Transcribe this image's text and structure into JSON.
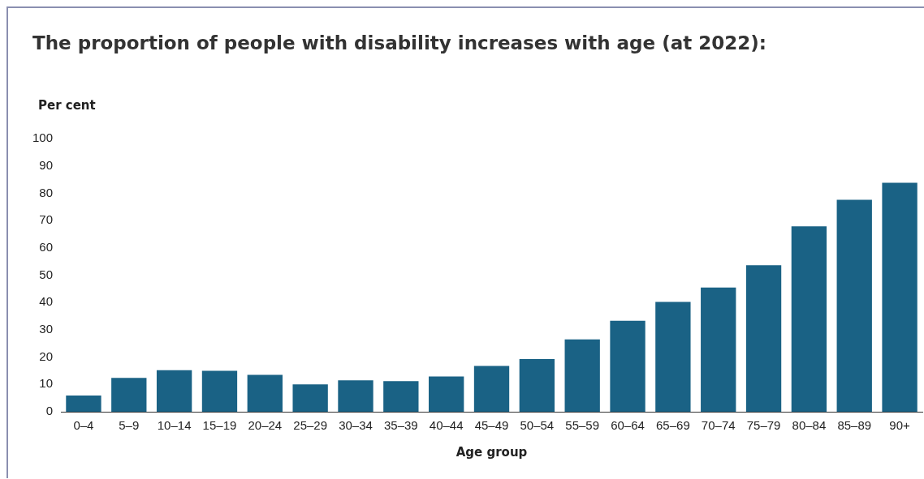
{
  "chart_data": {
    "type": "bar",
    "title": "The proportion of people with disability increases with age (at 2022):",
    "ylabel": "Per cent",
    "xlabel": "Age group",
    "categories": [
      "0–4",
      "5–9",
      "10–14",
      "15–19",
      "20–24",
      "25–29",
      "30–34",
      "35–39",
      "40–44",
      "45–49",
      "50–54",
      "55–59",
      "60–64",
      "65–69",
      "70–74",
      "75–79",
      "80–84",
      "85–89",
      "90+"
    ],
    "values": [
      5.9,
      12.4,
      15.2,
      15.0,
      13.5,
      10.0,
      11.5,
      11.2,
      12.9,
      16.8,
      19.3,
      26.5,
      33.3,
      40.2,
      45.5,
      53.6,
      67.9,
      77.6,
      83.8
    ],
    "color": "#1a6285",
    "ylim": [
      0,
      100
    ],
    "yticks": [
      0,
      10,
      20,
      30,
      40,
      50,
      60,
      70,
      80,
      90,
      100
    ],
    "grid": false,
    "legend": false
  }
}
